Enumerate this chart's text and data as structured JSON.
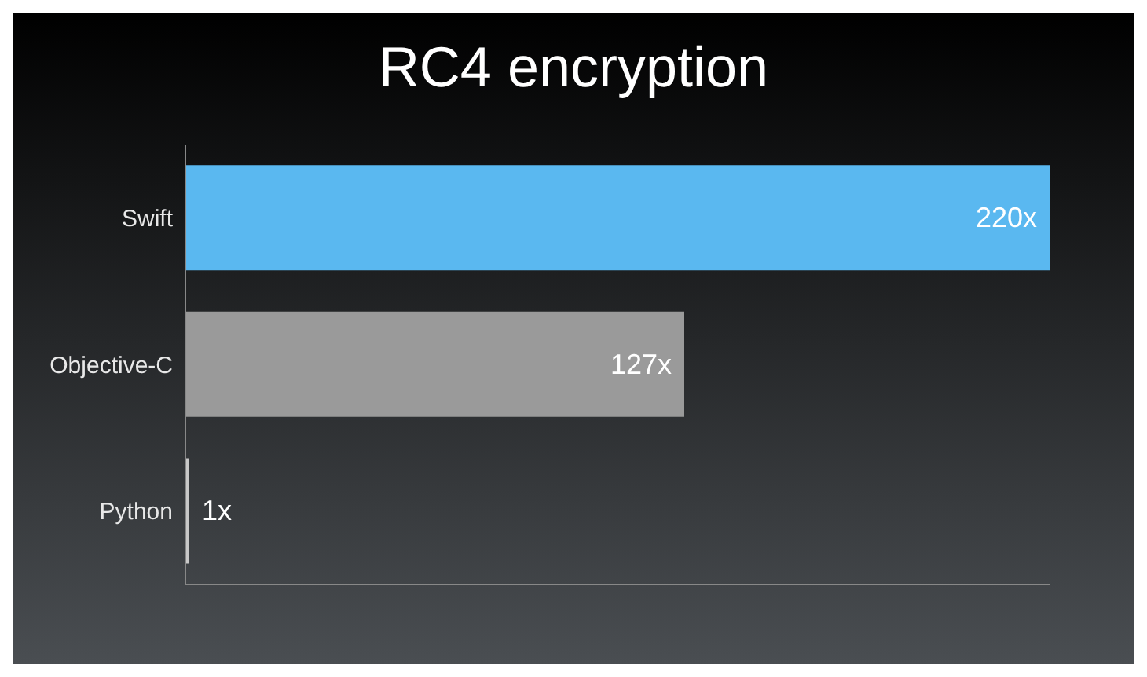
{
  "chart_data": {
    "type": "bar",
    "orientation": "horizontal",
    "title": "RC4 encryption",
    "categories": [
      "Swift",
      "Objective-C",
      "Python"
    ],
    "values": [
      220,
      127,
      1
    ],
    "colors": [
      "#5ab8f0",
      "#9a9a9a",
      "#c8c8c8"
    ],
    "value_labels": [
      "220x",
      "127x",
      "1x"
    ],
    "tick_labels": "y"
  }
}
